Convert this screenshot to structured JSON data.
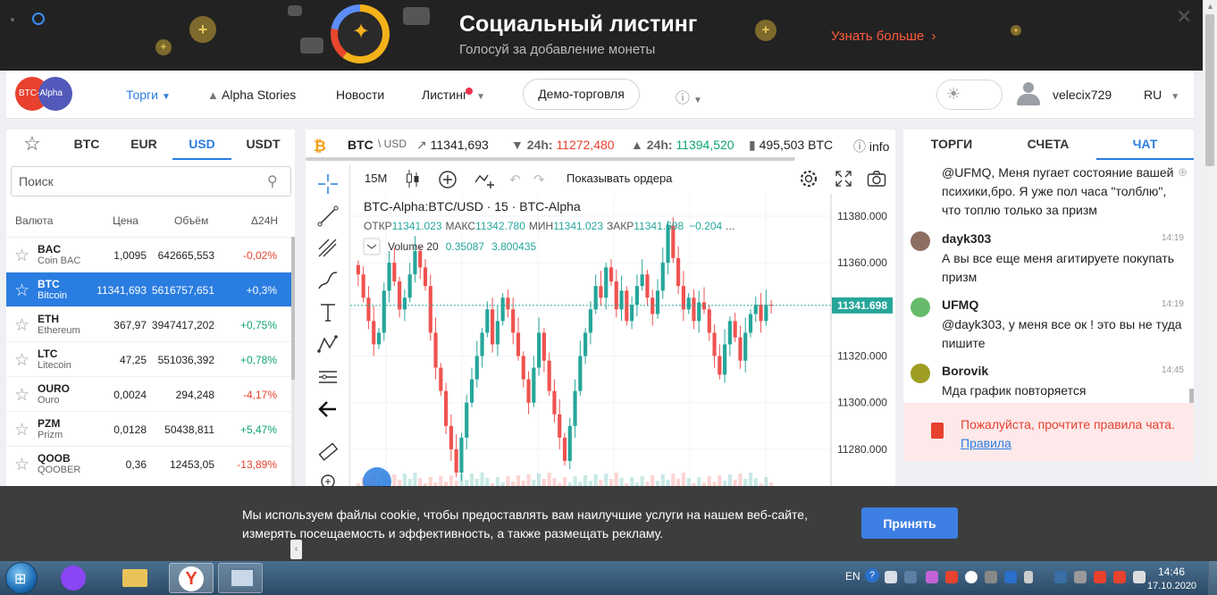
{
  "banner": {
    "title": "Социальный листинг",
    "subtitle": "Голосуй за добавление монеты",
    "more_label": "Узнать больше",
    "more_arrow": "›",
    "close_label": "✕"
  },
  "nav": {
    "logo_text": "BTC-Alpha",
    "trade": "Торги",
    "stories": "Alpha Stories",
    "news": "Новости",
    "listing": "Листинг",
    "demo": "Демо-торговля",
    "username": "velecix729",
    "lang": "RU"
  },
  "left": {
    "tabs": [
      "BTC",
      "EUR",
      "USD",
      "USDT"
    ],
    "active_tab": "USD",
    "search_placeholder": "Поиск",
    "headers": [
      "Валюта",
      "Цена",
      "Объём",
      "Δ24Н"
    ],
    "rows": [
      {
        "symbol": "BAC",
        "name": "Coin BAC",
        "price": "1,0095",
        "volume": "642665,553",
        "change": "-0,02%",
        "dir": "dn",
        "selected": false
      },
      {
        "symbol": "BTC",
        "name": "Bitcoin",
        "price": "11341,693",
        "volume": "5616757,651",
        "change": "+0,3%",
        "dir": "up",
        "selected": true
      },
      {
        "symbol": "ETH",
        "name": "Ethereum",
        "price": "367,97",
        "volume": "3947417,202",
        "change": "+0,75%",
        "dir": "up",
        "selected": false
      },
      {
        "symbol": "LTC",
        "name": "Litecoin",
        "price": "47,25",
        "volume": "551036,392",
        "change": "+0,78%",
        "dir": "up",
        "selected": false
      },
      {
        "symbol": "OURO",
        "name": "Ouro",
        "price": "0,0024",
        "volume": "294,248",
        "change": "-4,17%",
        "dir": "dn",
        "selected": false
      },
      {
        "symbol": "PZM",
        "name": "Prizm",
        "price": "0,0128",
        "volume": "50438,811",
        "change": "+5,47%",
        "dir": "up",
        "selected": false
      },
      {
        "symbol": "QOOB",
        "name": "QOOBER",
        "price": "0,36",
        "volume": "12453,05",
        "change": "-13,89%",
        "dir": "dn",
        "selected": false
      }
    ]
  },
  "ticker": {
    "pair": "BTC",
    "quote": "\\ USD",
    "price": "11341,693",
    "low_label": "24h:",
    "low_value": "11272,480",
    "high_label": "24h:",
    "high_value": "11394,520",
    "volume": "495,503 BTC",
    "info": "info"
  },
  "chart": {
    "interval": "15M",
    "show_orders": "Показывать ордера",
    "legend_title": "BTC-Alpha:BTC/USD · 15 · BTC-Alpha",
    "ohlc": {
      "open_label": "ОТКР",
      "open": "11341.023",
      "high_label": "МАКС",
      "high": "11342.780",
      "low_label": "МИН",
      "low": "11341.023",
      "close_label": "ЗАКР",
      "close": "11341.698",
      "change": "−0.204",
      "ellipsis": "..."
    },
    "volume_label": "Volume 20",
    "volume_v1": "0.35087",
    "volume_v2": "3.800435",
    "current_price": "11341.698",
    "up_color": "#26a69a",
    "down_color": "#ef5350"
  },
  "chart_data": {
    "type": "candlestick",
    "ylim": [
      11270,
      11388
    ],
    "yticks": [
      "11380.000",
      "11360.000",
      "11340.000",
      "11320.000",
      "11300.000",
      "11280.000"
    ],
    "ytick_values": [
      11380,
      11360,
      11340,
      11320,
      11300,
      11280
    ],
    "last_price": 11341.698,
    "closes": [
      11355,
      11345,
      11335,
      11325,
      11330,
      11348,
      11360,
      11352,
      11340,
      11345,
      11355,
      11365,
      11358,
      11350,
      11330,
      11315,
      11305,
      11290,
      11280,
      11270,
      11285,
      11300,
      11310,
      11320,
      11330,
      11340,
      11325,
      11335,
      11345,
      11340,
      11330,
      11320,
      11310,
      11300,
      11315,
      11330,
      11318,
      11305,
      11295,
      11285,
      11275,
      11290,
      11305,
      11320,
      11330,
      11340,
      11350,
      11345,
      11358,
      11352,
      11340,
      11348,
      11335,
      11342,
      11350,
      11355,
      11345,
      11338,
      11348,
      11360,
      11376,
      11362,
      11350,
      11340,
      11345,
      11335,
      11343,
      11340,
      11330,
      11320,
      11312,
      11325,
      11335,
      11328,
      11318,
      11330,
      11338,
      11342,
      11335,
      11342,
      11341.7
    ]
  },
  "right": {
    "tabs": [
      "ТОРГИ",
      "СЧЕТА",
      "ЧАТ"
    ],
    "messages": [
      {
        "user": "",
        "time": "",
        "text": "@UFMQ, Меня пугает состояние вашей психики,бро. Я уже пол часа \"толблю\", что топлю только за призм",
        "avatar": ""
      },
      {
        "user": "dayk303",
        "time": "14:19",
        "text": "А вы все еще меня агитируете покупать призм",
        "avatar": "#8d6e63"
      },
      {
        "user": "UFMQ",
        "time": "14:19",
        "text": "@dayk303, у меня все ок ! это вы не туда пишите",
        "avatar": "#66bb6a"
      },
      {
        "user": "Borovik",
        "time": "14:45",
        "text": "Мда график повторяется",
        "avatar": "#9e9d24"
      }
    ],
    "rules_text": "Пожалуйста, прочтите правила чата.",
    "rules_link": "Правила"
  },
  "cookie": {
    "text": "Мы используем файлы cookie, чтобы предоставлять вам наилучшие услуги на нашем веб-сайте, измерять посещаемость и эффективность, а также размещать рекламу.",
    "accept": "Принять"
  },
  "taskbar": {
    "lang": "EN",
    "time": "14:46",
    "date": "17.10.2020"
  }
}
